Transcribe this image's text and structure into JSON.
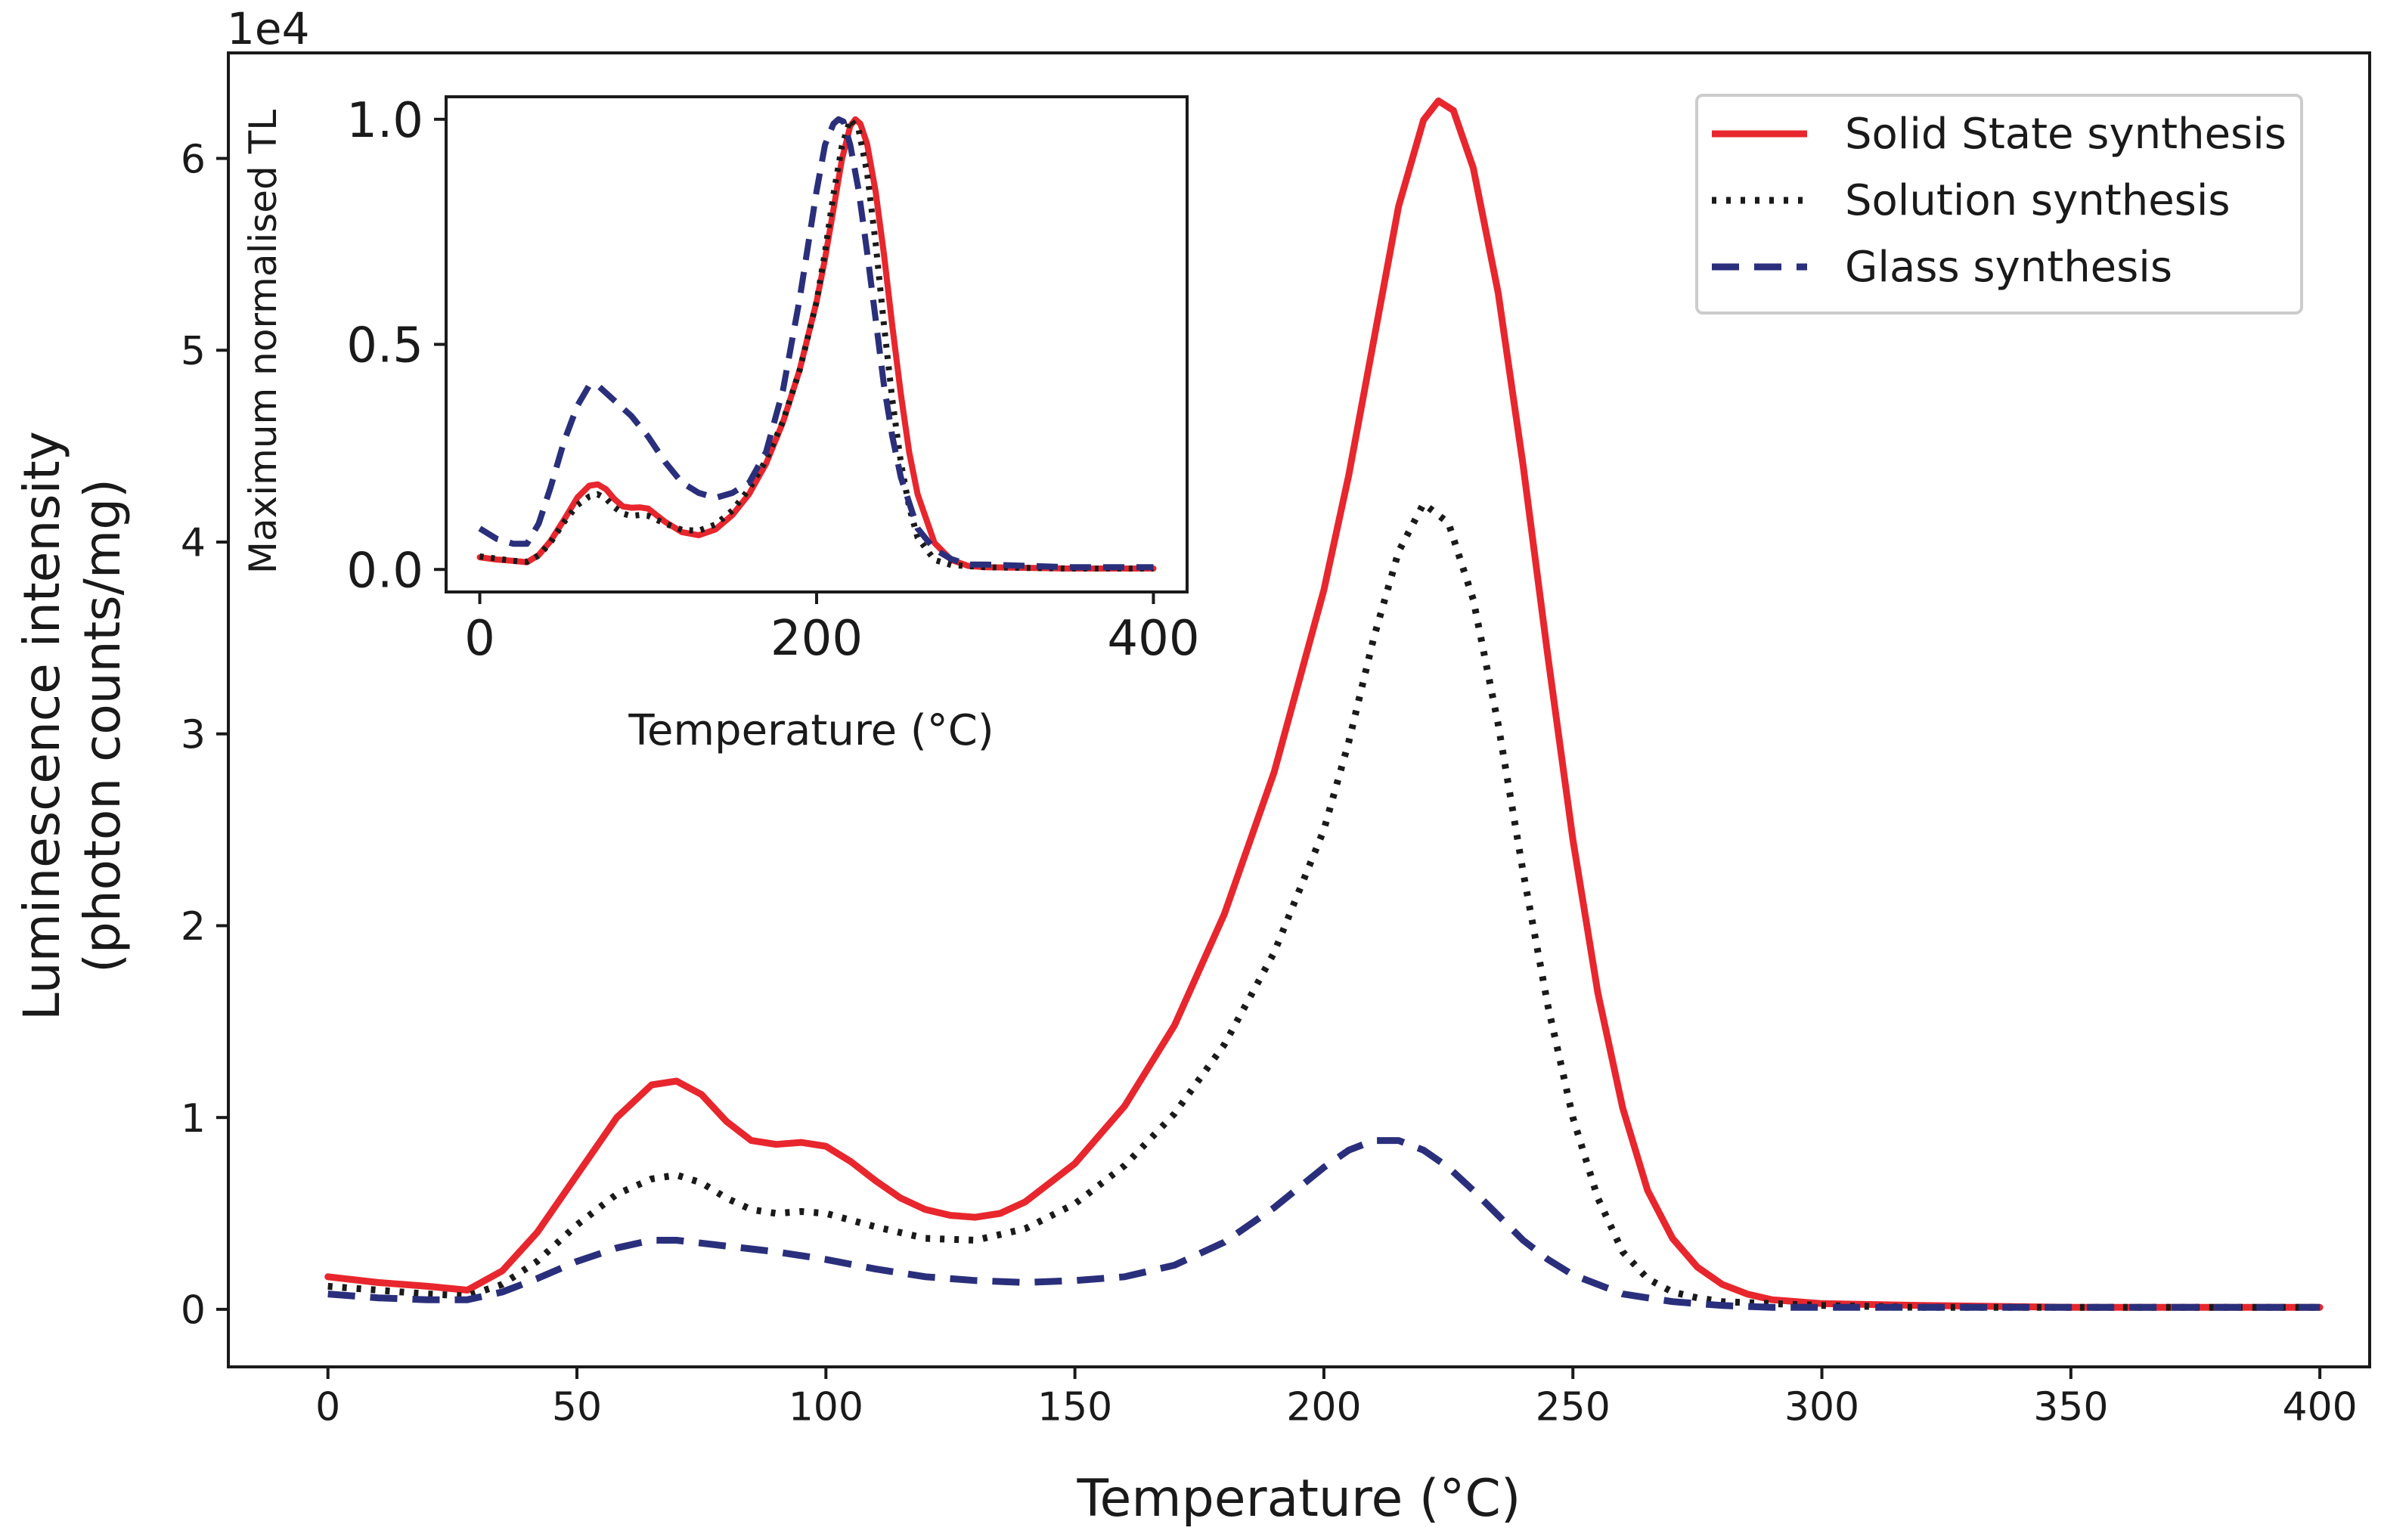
{
  "chart_data": [
    {
      "type": "line",
      "name": "main",
      "xlabel": "Temperature (°C)",
      "ylabel_line1": "Luminescence intensity",
      "ylabel_line2": "(photon counts/mg)",
      "offset_text": "1e4",
      "xlim": [
        -20,
        410
      ],
      "ylim": [
        -0.3,
        6.55
      ],
      "xticks": [
        0,
        50,
        100,
        150,
        200,
        250,
        300,
        350,
        400
      ],
      "yticks": [
        0,
        1,
        2,
        3,
        4,
        5,
        6
      ],
      "legend_position": "top-right",
      "series": [
        {
          "name": "Solid State synthesis",
          "color": "#e8262d",
          "style": "solid",
          "x": [
            0,
            10,
            20,
            28,
            35,
            42,
            50,
            58,
            65,
            70,
            75,
            80,
            85,
            90,
            95,
            100,
            105,
            110,
            115,
            120,
            125,
            130,
            135,
            140,
            150,
            160,
            170,
            180,
            190,
            200,
            205,
            210,
            215,
            220,
            223,
            226,
            230,
            235,
            240,
            245,
            250,
            255,
            260,
            265,
            270,
            275,
            280,
            285,
            290,
            300,
            320,
            350,
            400
          ],
          "y": [
            0.17,
            0.14,
            0.12,
            0.1,
            0.2,
            0.4,
            0.7,
            1.0,
            1.17,
            1.19,
            1.12,
            0.98,
            0.88,
            0.86,
            0.87,
            0.85,
            0.77,
            0.67,
            0.58,
            0.52,
            0.49,
            0.48,
            0.5,
            0.56,
            0.76,
            1.06,
            1.48,
            2.06,
            2.8,
            3.75,
            4.35,
            5.05,
            5.75,
            6.2,
            6.3,
            6.25,
            5.95,
            5.3,
            4.4,
            3.4,
            2.45,
            1.65,
            1.05,
            0.62,
            0.37,
            0.22,
            0.13,
            0.08,
            0.05,
            0.03,
            0.02,
            0.01,
            0.01
          ]
        },
        {
          "name": "Solution synthesis",
          "color": "#1a1a1a",
          "style": "dotted",
          "x": [
            0,
            10,
            20,
            28,
            35,
            42,
            50,
            58,
            65,
            70,
            75,
            80,
            85,
            90,
            95,
            100,
            110,
            120,
            130,
            140,
            150,
            160,
            170,
            180,
            190,
            200,
            205,
            210,
            215,
            220,
            225,
            230,
            235,
            240,
            245,
            250,
            255,
            260,
            265,
            270,
            275,
            280,
            290,
            300,
            320,
            350,
            400
          ],
          "y": [
            0.12,
            0.1,
            0.08,
            0.07,
            0.13,
            0.25,
            0.44,
            0.6,
            0.68,
            0.7,
            0.66,
            0.58,
            0.52,
            0.5,
            0.51,
            0.5,
            0.43,
            0.37,
            0.36,
            0.42,
            0.55,
            0.75,
            1.02,
            1.38,
            1.86,
            2.5,
            2.96,
            3.5,
            3.95,
            4.2,
            4.1,
            3.7,
            3.05,
            2.28,
            1.58,
            1.0,
            0.58,
            0.3,
            0.16,
            0.09,
            0.06,
            0.04,
            0.03,
            0.02,
            0.01,
            0.01,
            0.01
          ]
        },
        {
          "name": "Glass synthesis",
          "color": "#2a2f7c",
          "style": "dashed",
          "x": [
            0,
            10,
            20,
            28,
            35,
            42,
            50,
            58,
            65,
            70,
            80,
            90,
            100,
            110,
            120,
            130,
            140,
            150,
            160,
            170,
            180,
            190,
            200,
            205,
            210,
            215,
            220,
            225,
            230,
            235,
            240,
            245,
            250,
            260,
            270,
            280,
            290,
            300,
            320,
            350,
            400
          ],
          "y": [
            0.08,
            0.06,
            0.05,
            0.05,
            0.09,
            0.16,
            0.25,
            0.32,
            0.36,
            0.36,
            0.33,
            0.3,
            0.26,
            0.21,
            0.17,
            0.15,
            0.14,
            0.15,
            0.17,
            0.23,
            0.35,
            0.53,
            0.74,
            0.83,
            0.88,
            0.88,
            0.83,
            0.74,
            0.62,
            0.49,
            0.36,
            0.26,
            0.18,
            0.08,
            0.04,
            0.02,
            0.01,
            0.01,
            0.01,
            0.01,
            0.01
          ]
        }
      ]
    },
    {
      "type": "line",
      "name": "inset",
      "xlabel": "Temperature (°C)",
      "ylabel": "Maximum normalised TL",
      "xlim": [
        -20,
        420
      ],
      "ylim": [
        -0.05,
        1.05
      ],
      "xticks": [
        0,
        200,
        400
      ],
      "yticks": [
        0.0,
        0.5,
        1.0
      ],
      "ytick_labels": [
        "0.0",
        "0.5",
        "1.0"
      ],
      "series": [
        {
          "name": "Solid State synthesis",
          "color": "#e8262d",
          "style": "solid",
          "x": [
            0,
            10,
            20,
            28,
            35,
            42,
            50,
            58,
            65,
            70,
            75,
            80,
            85,
            90,
            95,
            100,
            110,
            120,
            130,
            140,
            150,
            160,
            170,
            180,
            190,
            200,
            205,
            210,
            215,
            220,
            223,
            226,
            230,
            235,
            240,
            245,
            250,
            255,
            260,
            270,
            280,
            290,
            300,
            350,
            400
          ],
          "y": [
            0.027,
            0.022,
            0.019,
            0.016,
            0.032,
            0.063,
            0.11,
            0.16,
            0.186,
            0.189,
            0.178,
            0.156,
            0.14,
            0.137,
            0.138,
            0.135,
            0.106,
            0.083,
            0.076,
            0.089,
            0.121,
            0.168,
            0.235,
            0.327,
            0.444,
            0.595,
            0.69,
            0.8,
            0.91,
            0.985,
            1.0,
            0.99,
            0.945,
            0.84,
            0.7,
            0.54,
            0.39,
            0.26,
            0.167,
            0.059,
            0.021,
            0.008,
            0.005,
            0.002,
            0.002
          ]
        },
        {
          "name": "Solution synthesis",
          "color": "#1a1a1a",
          "style": "dotted",
          "x": [
            0,
            10,
            20,
            28,
            35,
            42,
            50,
            58,
            65,
            70,
            75,
            80,
            85,
            90,
            95,
            100,
            110,
            120,
            130,
            140,
            150,
            160,
            170,
            180,
            190,
            200,
            205,
            210,
            215,
            220,
            225,
            230,
            235,
            240,
            245,
            250,
            255,
            260,
            270,
            280,
            300,
            350,
            400
          ],
          "y": [
            0.029,
            0.024,
            0.019,
            0.017,
            0.031,
            0.06,
            0.105,
            0.143,
            0.162,
            0.167,
            0.157,
            0.138,
            0.124,
            0.119,
            0.121,
            0.119,
            0.102,
            0.088,
            0.086,
            0.1,
            0.131,
            0.179,
            0.243,
            0.329,
            0.443,
            0.595,
            0.705,
            0.833,
            0.94,
            1.0,
            0.976,
            0.881,
            0.726,
            0.543,
            0.376,
            0.238,
            0.138,
            0.071,
            0.021,
            0.01,
            0.005,
            0.002,
            0.002
          ]
        },
        {
          "name": "Glass synthesis",
          "color": "#2a2f7c",
          "style": "dashed",
          "x": [
            0,
            10,
            20,
            28,
            35,
            42,
            50,
            58,
            65,
            70,
            80,
            90,
            100,
            110,
            120,
            130,
            140,
            150,
            160,
            170,
            180,
            190,
            200,
            205,
            210,
            213,
            216,
            220,
            225,
            230,
            235,
            240,
            245,
            250,
            260,
            270,
            280,
            290,
            300,
            350,
            400
          ],
          "y": [
            0.091,
            0.068,
            0.057,
            0.057,
            0.102,
            0.182,
            0.284,
            0.364,
            0.409,
            0.409,
            0.375,
            0.341,
            0.295,
            0.239,
            0.193,
            0.17,
            0.159,
            0.17,
            0.193,
            0.261,
            0.398,
            0.602,
            0.841,
            0.943,
            0.99,
            1.0,
            0.995,
            0.943,
            0.841,
            0.705,
            0.557,
            0.409,
            0.295,
            0.205,
            0.091,
            0.045,
            0.023,
            0.011,
            0.011,
            0.005,
            0.005
          ]
        }
      ]
    }
  ]
}
